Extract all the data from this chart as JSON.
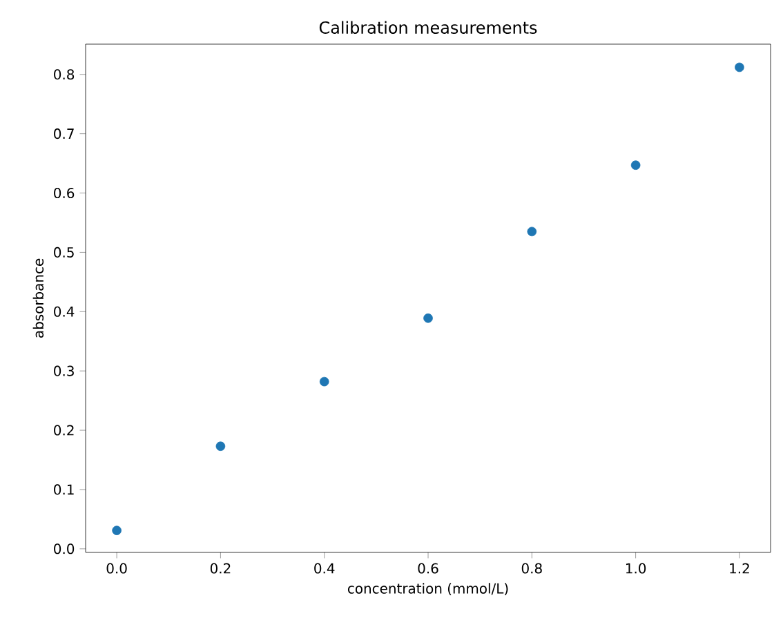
{
  "chart_data": {
    "type": "scatter",
    "title": "Calibration measurements",
    "xlabel": "concentration (mmol/L)",
    "ylabel": "absorbance",
    "x": [
      0.0,
      0.2,
      0.4,
      0.6,
      0.8,
      1.0,
      1.2
    ],
    "values": [
      0.031,
      0.173,
      0.282,
      0.389,
      0.535,
      0.647,
      0.812
    ],
    "color": "#1f77b4",
    "xlim": [
      -0.06,
      1.26
    ],
    "ylim": [
      -0.006,
      0.851
    ],
    "xticks": [
      {
        "value": 0,
        "label": "0.0"
      },
      0.2,
      0.4,
      0.6,
      0.8,
      {
        "value": 1,
        "label": "1.0"
      },
      1.2
    ],
    "yticks": [
      {
        "value": 0,
        "label": "0.0"
      },
      0.1,
      0.2,
      0.3,
      0.4,
      0.5,
      0.6,
      0.7,
      0.8
    ],
    "grid": false
  }
}
